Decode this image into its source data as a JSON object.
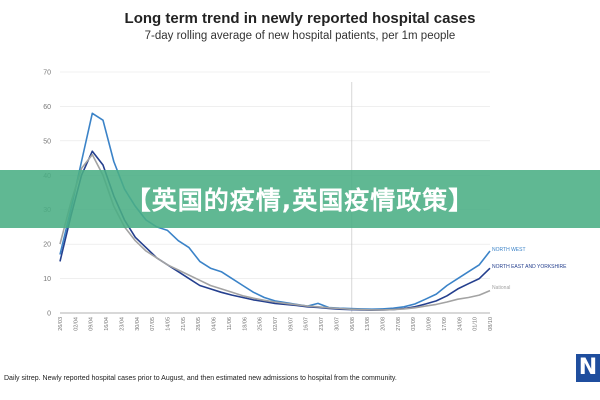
{
  "chart_data": {
    "type": "line",
    "title": "Long term trend in newly reported hospital cases",
    "subtitle": "7-day rolling average of new hospital patients, per 1m people",
    "ylim": [
      0,
      70
    ],
    "yticks": [
      0,
      10,
      20,
      30,
      40,
      50,
      60,
      70
    ],
    "x_labels": [
      "26/03",
      "02/04",
      "09/04",
      "16/04",
      "23/04",
      "30/04",
      "07/05",
      "14/05",
      "21/05",
      "28/05",
      "04/06",
      "11/06",
      "18/06",
      "25/06",
      "02/07",
      "09/07",
      "16/07",
      "23/07",
      "30/07",
      "06/08",
      "13/08",
      "20/08",
      "27/08",
      "03/09",
      "10/09",
      "17/09",
      "24/09",
      "01/10",
      "08/10"
    ],
    "vertical_marker": "06/08",
    "series": [
      {
        "name": "NORTH WEST",
        "color": "#3b83c8",
        "values": [
          17,
          30,
          44,
          58,
          56,
          44,
          36,
          31,
          27,
          25,
          24,
          21,
          19,
          15,
          13,
          12,
          10,
          8,
          6,
          4.5,
          3.5,
          3,
          2.5,
          2,
          2.8,
          1.6,
          1.4,
          1.3,
          1.2,
          1.1,
          1.2,
          1.4,
          1.8,
          2.6,
          4,
          5.5,
          8,
          10,
          12,
          14,
          18
        ]
      },
      {
        "name": "NORTH EAST AND YORKSHIRE",
        "color": "#243f8e",
        "values": [
          15,
          28,
          40,
          47,
          43,
          34,
          27,
          22,
          19,
          16,
          14,
          12,
          10,
          8,
          7,
          6,
          5.2,
          4.5,
          3.8,
          3.3,
          2.8,
          2.5,
          2.2,
          1.8,
          1.6,
          1.3,
          1.1,
          1,
          0.9,
          0.8,
          0.9,
          1,
          1.3,
          1.8,
          2.6,
          3.5,
          5,
          7,
          8.5,
          10,
          13
        ]
      },
      {
        "name": "National",
        "color": "#a3a3a3",
        "values": [
          20,
          32,
          42,
          46,
          40,
          31,
          25,
          21,
          18,
          16,
          14,
          12.5,
          11,
          9.5,
          8,
          7,
          6,
          5,
          4.3,
          3.7,
          3.2,
          2.8,
          2.4,
          2,
          1.8,
          1.5,
          1.3,
          1.1,
          1,
          0.9,
          0.9,
          1,
          1.2,
          1.5,
          2,
          2.5,
          3.2,
          4,
          4.5,
          5.2,
          6.5
        ]
      }
    ]
  },
  "overlay_text": "【英国的疫情,英国疫情政策】",
  "footnote": "Daily sitrep. Newly reported hospital cases prior to August, and then estimated new admissions to hospital from the community.",
  "logo_text": "N"
}
